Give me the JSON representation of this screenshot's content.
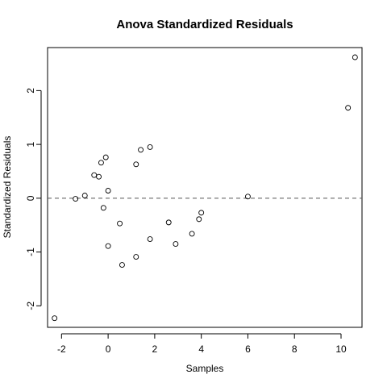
{
  "chart_data": {
    "type": "scatter",
    "title": "Anova Standardized Residuals",
    "xlabel": "Samples",
    "ylabel": "Standardized Residuals",
    "xlim": [
      -2.6,
      10.9
    ],
    "ylim": [
      -2.4,
      2.8
    ],
    "x_ticks": [
      -2,
      0,
      2,
      4,
      6,
      8,
      10
    ],
    "x_tick_labels": [
      "-2",
      "0",
      "2",
      "4",
      "6",
      "8",
      "10"
    ],
    "y_ticks": [
      -2,
      -1,
      0,
      1,
      2
    ],
    "y_tick_labels": [
      "-2",
      "-1",
      "0",
      "1",
      "2"
    ],
    "reference_line": {
      "y": 0,
      "style": "dashed"
    },
    "points": [
      {
        "x": -2.3,
        "y": -2.23
      },
      {
        "x": -1.4,
        "y": -0.01
      },
      {
        "x": -1.0,
        "y": 0.05
      },
      {
        "x": -0.6,
        "y": 0.43
      },
      {
        "x": -0.4,
        "y": 0.4
      },
      {
        "x": -0.3,
        "y": 0.66
      },
      {
        "x": -0.2,
        "y": -0.18
      },
      {
        "x": -0.1,
        "y": 0.76
      },
      {
        "x": 0.0,
        "y": 0.14
      },
      {
        "x": 0.0,
        "y": -0.89
      },
      {
        "x": 0.5,
        "y": -0.47
      },
      {
        "x": 0.6,
        "y": -1.24
      },
      {
        "x": 1.2,
        "y": 0.63
      },
      {
        "x": 1.2,
        "y": -1.09
      },
      {
        "x": 1.4,
        "y": 0.9
      },
      {
        "x": 1.8,
        "y": 0.95
      },
      {
        "x": 1.8,
        "y": -0.76
      },
      {
        "x": 2.6,
        "y": -0.45
      },
      {
        "x": 2.9,
        "y": -0.85
      },
      {
        "x": 3.6,
        "y": -0.66
      },
      {
        "x": 3.9,
        "y": -0.39
      },
      {
        "x": 4.0,
        "y": -0.27
      },
      {
        "x": 6.0,
        "y": 0.03
      },
      {
        "x": 10.3,
        "y": 1.68
      },
      {
        "x": 10.6,
        "y": 2.62
      }
    ]
  }
}
